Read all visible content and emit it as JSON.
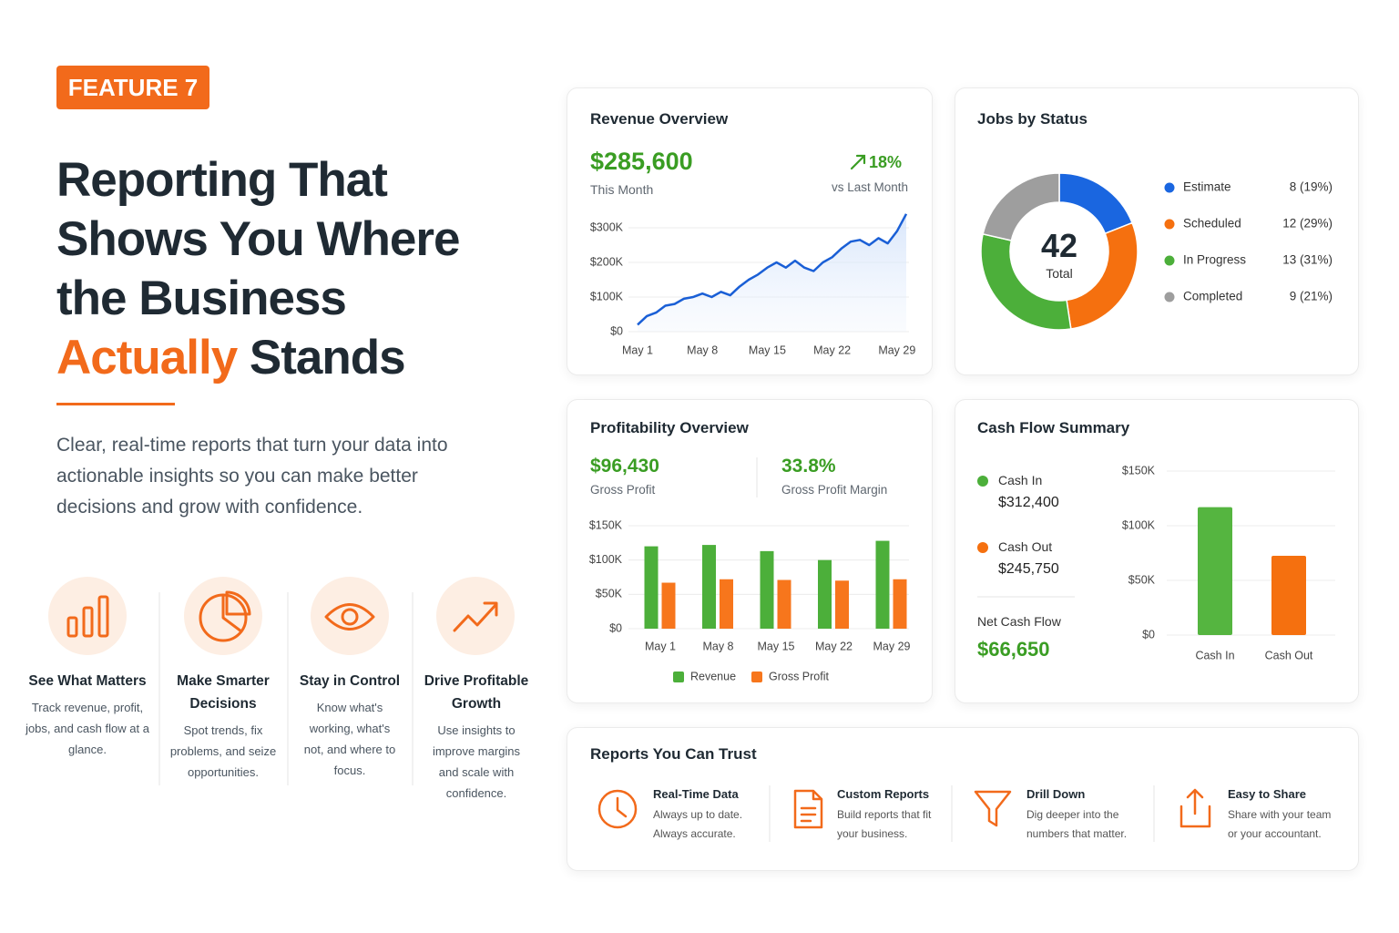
{
  "badge": "FEATURE 7",
  "headline": {
    "lines": [
      "Reporting That",
      "Shows You Where",
      "the Business"
    ],
    "highlight": "Actually",
    "last": "Stands"
  },
  "description": "Clear, real-time reports that turn your data into actionable insights so you can make better decisions and grow with confidence.",
  "features": [
    {
      "title": "See What Matters",
      "text": "Track revenue, profit, jobs, and cash flow at a glance."
    },
    {
      "title": "Make Smarter Decisions",
      "text": "Spot trends, fix problems, and seize opportunities."
    },
    {
      "title": "Stay in Control",
      "text": "Know what's working, what's not, and where to focus."
    },
    {
      "title": "Drive Profitable Growth",
      "text": "Use insights to improve margins and scale with confidence."
    }
  ],
  "revenue_overview": {
    "title": "Revenue Overview",
    "amount": "$285,600",
    "amount_label": "This Month",
    "change": "18%",
    "change_label": "vs Last Month",
    "chart": {
      "type": "line",
      "color": "#1a5fd6",
      "categories": [
        "May 1",
        null,
        null,
        null,
        null,
        null,
        null,
        "May 8",
        null,
        null,
        null,
        null,
        null,
        null,
        "May 15",
        null,
        null,
        null,
        null,
        null,
        null,
        "May 22",
        null,
        null,
        null,
        null,
        null,
        null,
        "May 29",
        null
      ],
      "values": [
        20000,
        45000,
        55000,
        75000,
        80000,
        95000,
        100000,
        110000,
        100000,
        115000,
        105000,
        130000,
        150000,
        165000,
        185000,
        200000,
        185000,
        205000,
        185000,
        175000,
        200000,
        215000,
        240000,
        260000,
        265000,
        250000,
        270000,
        255000,
        290000,
        340000
      ],
      "ylim": [
        0,
        350000
      ],
      "yticks": [
        {
          "value": 0,
          "label": "$0"
        },
        {
          "value": 100000,
          "label": "$100K"
        },
        {
          "value": 200000,
          "label": "$200K"
        },
        {
          "value": 300000,
          "label": "$300K"
        }
      ],
      "grid": true
    }
  },
  "jobs_by_status": {
    "title": "Jobs by Status",
    "total": 42,
    "total_label": "Total",
    "chart": {
      "type": "donut",
      "categories": [
        "Estimate",
        "Scheduled",
        "In Progress",
        "Completed"
      ],
      "values": [
        8,
        12,
        13,
        9
      ],
      "value_labels": [
        "8 (19%)",
        "12 (29%)",
        "13 (31%)",
        "9 (21%)"
      ],
      "colors": [
        "#1a66e0",
        "#f5700f",
        "#4caf3a",
        "#9e9e9e"
      ]
    }
  },
  "profitability_overview": {
    "title": "Profitability Overview",
    "gross_profit": "$96,430",
    "gross_profit_label": "Gross Profit",
    "margin": "33.8%",
    "margin_label": "Gross Profit Margin",
    "chart": {
      "type": "bar",
      "categories": [
        "May 1",
        "May 8",
        "May 15",
        "May 22",
        "May 29"
      ],
      "series": [
        {
          "name": "Revenue",
          "color": "#4caf3a",
          "values": [
            120000,
            122000,
            113000,
            100000,
            128000
          ]
        },
        {
          "name": "Gross Profit",
          "color": "#f7761c",
          "values": [
            67000,
            72000,
            71000,
            70000,
            72000
          ]
        }
      ],
      "ylim": [
        0,
        150000
      ],
      "yticks": [
        {
          "value": 0,
          "label": "$0"
        },
        {
          "value": 50000,
          "label": "$50K"
        },
        {
          "value": 100000,
          "label": "$100K"
        },
        {
          "value": 150000,
          "label": "$150K"
        }
      ],
      "grid": true
    }
  },
  "cash_flow_summary": {
    "title": "Cash Flow Summary",
    "cash_in_label": "Cash In",
    "cash_in": "$312,400",
    "cash_out_label": "Cash Out",
    "cash_out": "$245,750",
    "net_label": "Net Cash Flow",
    "net": "$66,650",
    "chart": {
      "type": "bar",
      "categories": [
        "Cash In",
        "Cash Out"
      ],
      "values": [
        117000,
        72500
      ],
      "colors": [
        "#55b540",
        "#f5700f"
      ],
      "ylim": [
        0,
        150000
      ],
      "yticks": [
        {
          "value": 0,
          "label": "$0"
        },
        {
          "value": 50000,
          "label": "$50K"
        },
        {
          "value": 100000,
          "label": "$100K"
        },
        {
          "value": 150000,
          "label": "$150K"
        }
      ],
      "grid": true
    }
  },
  "reports": {
    "title": "Reports You Can Trust",
    "items": [
      {
        "title": "Real-Time Data",
        "text": "Always up to date. Always accurate."
      },
      {
        "title": "Custom Reports",
        "text": "Build reports that fit your business."
      },
      {
        "title": "Drill Down",
        "text": "Dig deeper into the numbers that matter."
      },
      {
        "title": "Easy to Share",
        "text": "Share with your team or your accountant."
      }
    ]
  }
}
